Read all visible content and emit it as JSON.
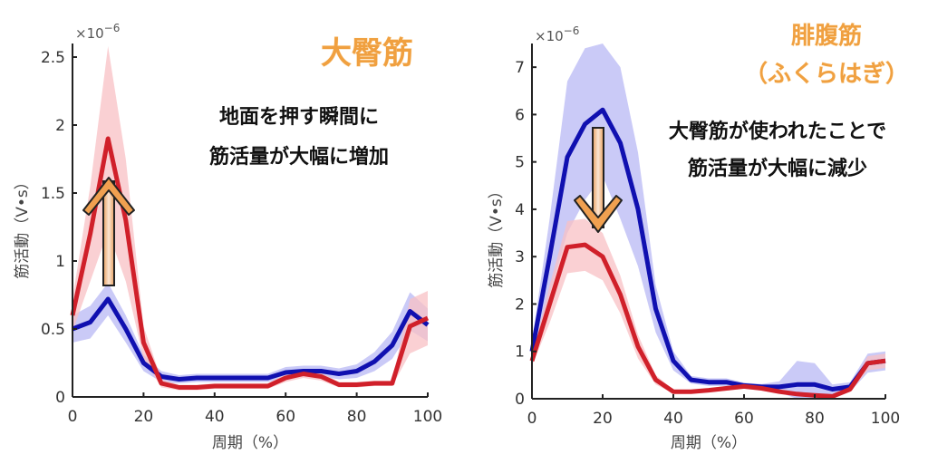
{
  "colors": {
    "blue": "#1010b0",
    "red": "#d0202a",
    "blue_band": "#b8b8f4",
    "red_band": "#f8c0c4",
    "arrow": "#f0a050"
  },
  "chart_data": [
    {
      "type": "line",
      "title": "大臀筋",
      "annotation": [
        "地面を押す瞬間に",
        "筋活量が大幅に増加"
      ],
      "arrow_direction": "up",
      "xlabel": "周期（%）",
      "ylabel": "筋活動（V•s）",
      "y_exponent": "×10",
      "y_exponent_power": "−6",
      "xlim": [
        0,
        100
      ],
      "ylim": [
        0,
        2.6
      ],
      "xticks": [
        "0",
        "20",
        "40",
        "60",
        "80",
        "100"
      ],
      "yticks": [
        "0",
        "0.5",
        "1",
        "1.5",
        "2",
        "2.5"
      ],
      "ytick_values": [
        0,
        0.5,
        1,
        1.5,
        2,
        2.5
      ],
      "xtick_values": [
        0,
        20,
        40,
        60,
        80,
        100
      ],
      "x": [
        0,
        5,
        10,
        15,
        20,
        25,
        30,
        35,
        40,
        45,
        50,
        55,
        60,
        65,
        70,
        75,
        80,
        85,
        90,
        95,
        100
      ],
      "series": [
        {
          "name": "blue",
          "values": [
            0.5,
            0.55,
            0.72,
            0.5,
            0.25,
            0.15,
            0.13,
            0.14,
            0.14,
            0.14,
            0.14,
            0.14,
            0.18,
            0.19,
            0.19,
            0.17,
            0.19,
            0.26,
            0.38,
            0.63,
            0.53
          ],
          "band": [
            0.1,
            0.12,
            0.12,
            0.1,
            0.06,
            0.04,
            0.03,
            0.03,
            0.03,
            0.03,
            0.03,
            0.03,
            0.04,
            0.04,
            0.04,
            0.04,
            0.05,
            0.07,
            0.1,
            0.14,
            0.12
          ]
        },
        {
          "name": "red",
          "values": [
            0.6,
            1.2,
            1.9,
            1.3,
            0.4,
            0.1,
            0.07,
            0.07,
            0.08,
            0.08,
            0.08,
            0.08,
            0.14,
            0.17,
            0.15,
            0.09,
            0.09,
            0.1,
            0.1,
            0.52,
            0.58
          ],
          "band": [
            0.12,
            0.35,
            0.68,
            0.45,
            0.12,
            0.03,
            0.02,
            0.02,
            0.02,
            0.02,
            0.02,
            0.02,
            0.03,
            0.03,
            0.03,
            0.02,
            0.02,
            0.02,
            0.02,
            0.2,
            0.2
          ]
        }
      ]
    },
    {
      "type": "line",
      "title": "腓腹筋",
      "subtitle": "（ふくらはぎ）",
      "annotation": [
        "大臀筋が使われたことで",
        "筋活量が大幅に減少"
      ],
      "arrow_direction": "down",
      "xlabel": "周期（%）",
      "ylabel": "筋活動（V•s）",
      "y_exponent": "×10",
      "y_exponent_power": "−6",
      "xlim": [
        0,
        100
      ],
      "ylim": [
        0,
        7.5
      ],
      "xticks": [
        "0",
        "20",
        "40",
        "60",
        "80",
        "100"
      ],
      "yticks": [
        "0",
        "1",
        "2",
        "3",
        "4",
        "5",
        "6",
        "7"
      ],
      "ytick_values": [
        0,
        1,
        2,
        3,
        4,
        5,
        6,
        7
      ],
      "xtick_values": [
        0,
        20,
        40,
        60,
        80,
        100
      ],
      "x": [
        0,
        5,
        10,
        15,
        20,
        25,
        30,
        35,
        40,
        45,
        50,
        55,
        60,
        65,
        70,
        75,
        80,
        85,
        90,
        95,
        100
      ],
      "series": [
        {
          "name": "blue",
          "values": [
            1.0,
            3.0,
            5.1,
            5.8,
            6.1,
            5.4,
            4.0,
            1.9,
            0.8,
            0.4,
            0.35,
            0.35,
            0.28,
            0.25,
            0.25,
            0.3,
            0.3,
            0.2,
            0.25,
            0.75,
            0.8
          ],
          "band": [
            0.2,
            0.8,
            1.6,
            1.6,
            1.4,
            1.6,
            1.2,
            0.5,
            0.2,
            0.08,
            0.08,
            0.08,
            0.06,
            0.06,
            0.12,
            0.5,
            0.45,
            0.1,
            0.1,
            0.2,
            0.2
          ]
        },
        {
          "name": "red",
          "values": [
            0.8,
            2.0,
            3.2,
            3.25,
            3.0,
            2.2,
            1.1,
            0.4,
            0.15,
            0.15,
            0.18,
            0.22,
            0.26,
            0.22,
            0.15,
            0.1,
            0.07,
            0.05,
            0.2,
            0.75,
            0.8
          ],
          "band": [
            0.1,
            0.4,
            0.55,
            0.55,
            0.5,
            0.4,
            0.25,
            0.1,
            0.04,
            0.04,
            0.04,
            0.05,
            0.05,
            0.05,
            0.04,
            0.03,
            0.03,
            0.03,
            0.05,
            0.15,
            0.15
          ]
        }
      ]
    }
  ]
}
